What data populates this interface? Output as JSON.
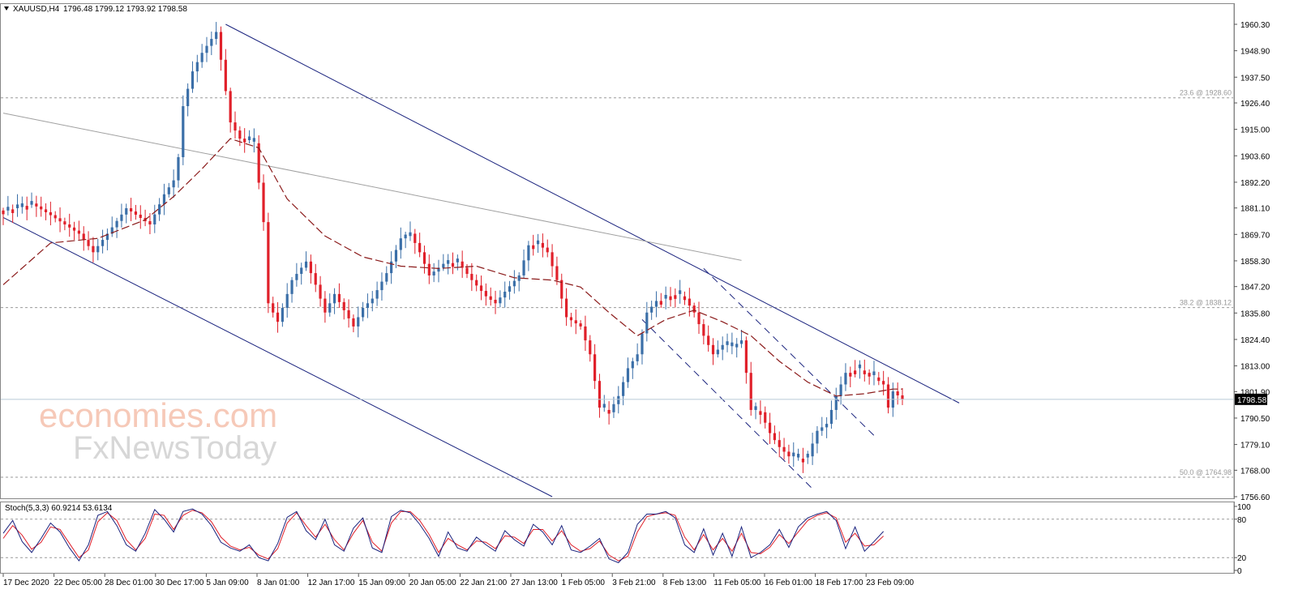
{
  "header": {
    "symbol_text": "XAUUSD,H4",
    "ohlc_text": "1796.48 1799.12 1793.92 1798.58"
  },
  "indicator": {
    "label": "Stoch(5,3,3) 60.9214 53.6134",
    "k_last": 60.9214,
    "d_last": 53.6134,
    "levels": [
      80,
      20
    ],
    "scale_labels": [
      "100",
      "80",
      "20",
      "0"
    ]
  },
  "watermark": {
    "line1": "economies.com",
    "line2": "FxNewsToday"
  },
  "current_price": "1798.58",
  "fib_levels": [
    {
      "label": "23.6 @ 1928.60",
      "price": 1928.6
    },
    {
      "label": "38.2 @ 1838.12",
      "price": 1838.12
    },
    {
      "label": "50.0 @ 1764.98",
      "price": 1764.98
    }
  ],
  "colors": {
    "bull": "#3b6fa8",
    "bear": "#e0202a",
    "channel": "#1a237e",
    "ma": "#8b1a1a",
    "grey_trend": "#a0a0a0",
    "stoch_k": "#1a237e",
    "stoch_d": "#e0202a"
  },
  "chart_data": {
    "type": "candlestick",
    "symbol": "XAUUSD",
    "timeframe": "H4",
    "y_ticks": [
      1960.3,
      1948.9,
      1937.5,
      1926.4,
      1915.0,
      1903.6,
      1892.2,
      1881.1,
      1869.7,
      1858.3,
      1847.2,
      1835.8,
      1824.4,
      1813.0,
      1801.9,
      1790.5,
      1779.1,
      1768.0,
      1756.6
    ],
    "ylim": [
      1756.0,
      1964.0
    ],
    "x_tick_labels": [
      "17 Dec 2020",
      "22 Dec 05:00",
      "28 Dec 01:00",
      "30 Dec 17:00",
      "5 Jan 09:00",
      "8 Jan 01:00",
      "12 Jan 17:00",
      "15 Jan 09:00",
      "20 Jan 05:00",
      "22 Jan 21:00",
      "27 Jan 13:00",
      "1 Feb 05:00",
      "3 Feb 21:00",
      "8 Feb 13:00",
      "11 Feb 05:00",
      "16 Feb 01:00",
      "18 Feb 17:00",
      "23 Feb 09:00"
    ],
    "close_path": [
      [
        0,
        1880
      ],
      [
        6,
        1883
      ],
      [
        10,
        1878
      ],
      [
        16,
        1870
      ],
      [
        19,
        1862
      ],
      [
        22,
        1870
      ],
      [
        26,
        1881
      ],
      [
        31,
        1874
      ],
      [
        34,
        1887
      ],
      [
        36,
        1893
      ],
      [
        37,
        1903
      ],
      [
        38,
        1925
      ],
      [
        40,
        1940
      ],
      [
        42,
        1948
      ],
      [
        45,
        1957
      ],
      [
        46,
        1945
      ],
      [
        48,
        1918
      ],
      [
        50,
        1911
      ],
      [
        53,
        1909
      ],
      [
        55,
        1875
      ],
      [
        56,
        1840
      ],
      [
        58,
        1832
      ],
      [
        61,
        1850
      ],
      [
        64,
        1858
      ],
      [
        66,
        1848
      ],
      [
        68,
        1836
      ],
      [
        70,
        1844
      ],
      [
        74,
        1830
      ],
      [
        76,
        1838
      ],
      [
        78,
        1842
      ],
      [
        81,
        1853
      ],
      [
        84,
        1868
      ],
      [
        86,
        1870
      ],
      [
        88,
        1862
      ],
      [
        90,
        1852
      ],
      [
        93,
        1857
      ],
      [
        96,
        1858
      ],
      [
        99,
        1850
      ],
      [
        102,
        1843
      ],
      [
        104,
        1840
      ],
      [
        106,
        1845
      ],
      [
        109,
        1852
      ],
      [
        111,
        1865
      ],
      [
        113,
        1866
      ],
      [
        115,
        1862
      ],
      [
        117,
        1850
      ],
      [
        119,
        1834
      ],
      [
        122,
        1830
      ],
      [
        124,
        1818
      ],
      [
        126,
        1795
      ],
      [
        128,
        1793
      ],
      [
        130,
        1800
      ],
      [
        132,
        1812
      ],
      [
        134,
        1818
      ],
      [
        136,
        1836
      ],
      [
        138,
        1841
      ],
      [
        140,
        1843
      ],
      [
        142,
        1844
      ],
      [
        144,
        1842
      ],
      [
        146,
        1836
      ],
      [
        148,
        1826
      ],
      [
        150,
        1818
      ],
      [
        152,
        1822
      ],
      [
        154,
        1821
      ],
      [
        156,
        1824
      ],
      [
        157,
        1810
      ],
      [
        158,
        1794
      ],
      [
        160,
        1793
      ],
      [
        162,
        1784
      ],
      [
        164,
        1778
      ],
      [
        166,
        1774
      ],
      [
        168,
        1773
      ],
      [
        170,
        1774
      ],
      [
        172,
        1785
      ],
      [
        174,
        1788
      ],
      [
        176,
        1800
      ],
      [
        178,
        1810
      ],
      [
        180,
        1812
      ],
      [
        182,
        1810
      ],
      [
        184,
        1808
      ],
      [
        186,
        1805
      ],
      [
        187,
        1795
      ],
      [
        188,
        1802
      ],
      [
        190,
        1798.58
      ]
    ],
    "moving_average": [
      [
        0,
        1848
      ],
      [
        10,
        1866
      ],
      [
        20,
        1868
      ],
      [
        30,
        1876
      ],
      [
        36,
        1886
      ],
      [
        42,
        1898
      ],
      [
        48,
        1911
      ],
      [
        54,
        1907
      ],
      [
        60,
        1885
      ],
      [
        68,
        1869
      ],
      [
        76,
        1860
      ],
      [
        84,
        1856
      ],
      [
        92,
        1855
      ],
      [
        100,
        1856
      ],
      [
        108,
        1851
      ],
      [
        116,
        1850
      ],
      [
        122,
        1847
      ],
      [
        128,
        1836
      ],
      [
        134,
        1826
      ],
      [
        140,
        1833
      ],
      [
        146,
        1837
      ],
      [
        152,
        1832
      ],
      [
        158,
        1826
      ],
      [
        164,
        1815
      ],
      [
        170,
        1806
      ],
      [
        176,
        1800
      ],
      [
        182,
        1801
      ],
      [
        188,
        1803
      ],
      [
        190,
        1803
      ]
    ],
    "trendlines": [
      {
        "kind": "channel-upper",
        "from": [
          47,
          1960.3
        ],
        "to": [
          202,
          1797
        ]
      },
      {
        "kind": "channel-lower",
        "from": [
          0,
          1877
        ],
        "to": [
          116,
          1756.6
        ]
      },
      {
        "kind": "grey-trend",
        "from": [
          0,
          1922
        ],
        "to": [
          156,
          1858.5
        ]
      },
      {
        "kind": "dashed-upper",
        "from": [
          148,
          1855
        ],
        "to": [
          184,
          1783
        ]
      },
      {
        "kind": "dashed-lower",
        "from": [
          135,
          1833
        ],
        "to": [
          171,
          1760
        ]
      }
    ],
    "stochastic": {
      "k": [
        [
          0,
          58
        ],
        [
          2,
          78
        ],
        [
          4,
          45
        ],
        [
          6,
          28
        ],
        [
          8,
          50
        ],
        [
          10,
          74
        ],
        [
          12,
          60
        ],
        [
          14,
          35
        ],
        [
          16,
          15
        ],
        [
          18,
          40
        ],
        [
          20,
          86
        ],
        [
          22,
          92
        ],
        [
          24,
          70
        ],
        [
          26,
          40
        ],
        [
          28,
          30
        ],
        [
          30,
          58
        ],
        [
          32,
          95
        ],
        [
          34,
          80
        ],
        [
          36,
          60
        ],
        [
          38,
          92
        ],
        [
          40,
          96
        ],
        [
          42,
          88
        ],
        [
          44,
          70
        ],
        [
          46,
          44
        ],
        [
          48,
          35
        ],
        [
          50,
          30
        ],
        [
          52,
          40
        ],
        [
          54,
          20
        ],
        [
          56,
          15
        ],
        [
          58,
          42
        ],
        [
          60,
          83
        ],
        [
          62,
          92
        ],
        [
          64,
          62
        ],
        [
          66,
          48
        ],
        [
          68,
          80
        ],
        [
          70,
          40
        ],
        [
          72,
          30
        ],
        [
          74,
          66
        ],
        [
          76,
          82
        ],
        [
          78,
          35
        ],
        [
          80,
          28
        ],
        [
          82,
          84
        ],
        [
          84,
          94
        ],
        [
          86,
          90
        ],
        [
          88,
          72
        ],
        [
          90,
          50
        ],
        [
          92,
          22
        ],
        [
          94,
          60
        ],
        [
          96,
          35
        ],
        [
          98,
          30
        ],
        [
          100,
          52
        ],
        [
          102,
          40
        ],
        [
          104,
          30
        ],
        [
          106,
          62
        ],
        [
          108,
          48
        ],
        [
          110,
          38
        ],
        [
          112,
          72
        ],
        [
          114,
          60
        ],
        [
          116,
          40
        ],
        [
          118,
          70
        ],
        [
          120,
          32
        ],
        [
          122,
          28
        ],
        [
          124,
          38
        ],
        [
          126,
          50
        ],
        [
          128,
          18
        ],
        [
          130,
          12
        ],
        [
          132,
          28
        ],
        [
          134,
          72
        ],
        [
          136,
          88
        ],
        [
          138,
          88
        ],
        [
          140,
          92
        ],
        [
          142,
          82
        ],
        [
          144,
          40
        ],
        [
          146,
          28
        ],
        [
          148,
          65
        ],
        [
          150,
          24
        ],
        [
          152,
          58
        ],
        [
          154,
          22
        ],
        [
          156,
          68
        ],
        [
          158,
          20
        ],
        [
          160,
          28
        ],
        [
          162,
          40
        ],
        [
          164,
          64
        ],
        [
          166,
          36
        ],
        [
          168,
          68
        ],
        [
          170,
          82
        ],
        [
          172,
          88
        ],
        [
          174,
          92
        ],
        [
          176,
          78
        ],
        [
          178,
          34
        ],
        [
          180,
          68
        ],
        [
          182,
          30
        ],
        [
          184,
          45
        ],
        [
          186,
          60.92
        ]
      ],
      "d": [
        [
          0,
          50
        ],
        [
          2,
          70
        ],
        [
          4,
          55
        ],
        [
          6,
          33
        ],
        [
          8,
          44
        ],
        [
          10,
          68
        ],
        [
          12,
          64
        ],
        [
          14,
          42
        ],
        [
          16,
          20
        ],
        [
          18,
          32
        ],
        [
          20,
          76
        ],
        [
          22,
          90
        ],
        [
          24,
          78
        ],
        [
          26,
          48
        ],
        [
          28,
          32
        ],
        [
          30,
          50
        ],
        [
          32,
          88
        ],
        [
          34,
          86
        ],
        [
          36,
          64
        ],
        [
          38,
          86
        ],
        [
          40,
          94
        ],
        [
          42,
          90
        ],
        [
          44,
          76
        ],
        [
          46,
          52
        ],
        [
          48,
          38
        ],
        [
          50,
          32
        ],
        [
          52,
          36
        ],
        [
          54,
          24
        ],
        [
          56,
          18
        ],
        [
          58,
          34
        ],
        [
          60,
          74
        ],
        [
          62,
          90
        ],
        [
          64,
          70
        ],
        [
          66,
          52
        ],
        [
          68,
          72
        ],
        [
          70,
          48
        ],
        [
          72,
          32
        ],
        [
          74,
          58
        ],
        [
          76,
          78
        ],
        [
          78,
          44
        ],
        [
          80,
          30
        ],
        [
          82,
          74
        ],
        [
          84,
          92
        ],
        [
          86,
          92
        ],
        [
          88,
          78
        ],
        [
          90,
          56
        ],
        [
          92,
          28
        ],
        [
          94,
          50
        ],
        [
          96,
          40
        ],
        [
          98,
          32
        ],
        [
          100,
          46
        ],
        [
          102,
          44
        ],
        [
          104,
          34
        ],
        [
          106,
          54
        ],
        [
          108,
          52
        ],
        [
          110,
          42
        ],
        [
          112,
          64
        ],
        [
          114,
          64
        ],
        [
          116,
          46
        ],
        [
          118,
          62
        ],
        [
          120,
          40
        ],
        [
          122,
          30
        ],
        [
          124,
          34
        ],
        [
          126,
          46
        ],
        [
          128,
          24
        ],
        [
          130,
          15
        ],
        [
          132,
          22
        ],
        [
          134,
          60
        ],
        [
          136,
          84
        ],
        [
          138,
          88
        ],
        [
          140,
          90
        ],
        [
          142,
          86
        ],
        [
          144,
          52
        ],
        [
          146,
          32
        ],
        [
          148,
          56
        ],
        [
          150,
          32
        ],
        [
          152,
          50
        ],
        [
          154,
          30
        ],
        [
          156,
          58
        ],
        [
          158,
          28
        ],
        [
          160,
          26
        ],
        [
          162,
          36
        ],
        [
          164,
          56
        ],
        [
          166,
          42
        ],
        [
          168,
          60
        ],
        [
          170,
          78
        ],
        [
          172,
          86
        ],
        [
          174,
          90
        ],
        [
          176,
          82
        ],
        [
          178,
          44
        ],
        [
          180,
          58
        ],
        [
          182,
          38
        ],
        [
          184,
          40
        ],
        [
          186,
          53.61
        ]
      ]
    },
    "stoch_ylim": [
      0,
      100
    ]
  }
}
